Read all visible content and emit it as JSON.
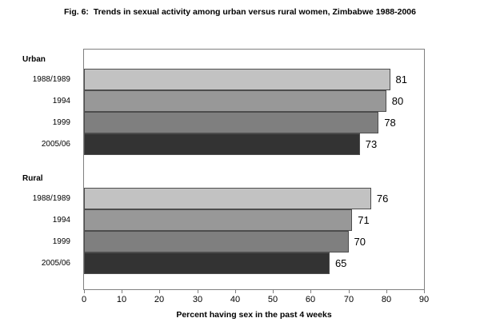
{
  "title": "Fig. 6:  Trends in sexual activity among urban versus rural women, Zimbabwe 1988-2006",
  "chart_data": {
    "type": "bar",
    "orientation": "horizontal",
    "title": "Fig. 6:  Trends in sexual activity among urban versus rural women, Zimbabwe 1988-2006",
    "xlabel": "Percent having sex in the past 4 weeks",
    "xlim": [
      0,
      90
    ],
    "xticks": [
      0,
      10,
      20,
      30,
      40,
      50,
      60,
      70,
      80,
      90
    ],
    "grid": false,
    "legend": false,
    "value_labels_shown": true,
    "groups": [
      {
        "label": "Urban",
        "categories": [
          "1988/1989",
          "1994",
          "1999",
          "2005/06"
        ],
        "values": [
          81,
          80,
          78,
          73
        ]
      },
      {
        "label": "Rural",
        "categories": [
          "1988/1989",
          "1994",
          "1999",
          "2005/06"
        ],
        "values": [
          76,
          71,
          70,
          65
        ]
      }
    ],
    "bar_colors": [
      "#c2c2c2",
      "#989898",
      "#7f7f7f",
      "#333333"
    ],
    "bar_border_color": "#4d4d4d",
    "axis_color": "#808080"
  }
}
